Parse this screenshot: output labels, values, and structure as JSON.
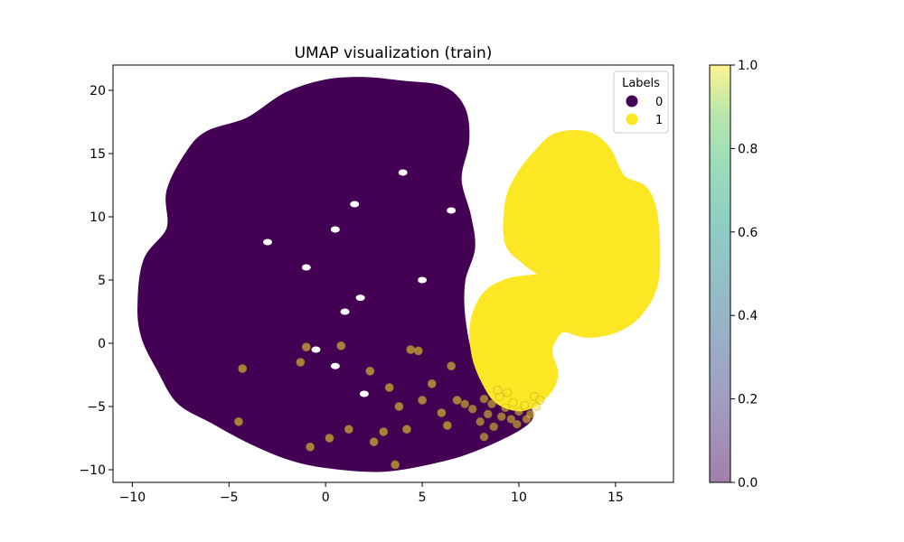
{
  "chart_data": {
    "type": "scatter",
    "title": "UMAP visualization (train)",
    "xlabel": "",
    "ylabel": "",
    "xlim": [
      -11,
      18
    ],
    "ylim": [
      -11,
      22
    ],
    "xticks": [
      -10,
      -5,
      0,
      5,
      10,
      15
    ],
    "yticks": [
      -10,
      -5,
      0,
      5,
      10,
      15,
      20
    ],
    "grid": false,
    "legend": {
      "title": "Labels",
      "placement": "top-right",
      "entries": [
        {
          "label": "0",
          "color": "#440154"
        },
        {
          "label": "1",
          "color": "#fde725"
        }
      ]
    },
    "colorbar": {
      "ticks": [
        0.0,
        0.2,
        0.4,
        0.6,
        0.8,
        1.0
      ],
      "tick_labels": [
        "0.0",
        "0.2",
        "0.4",
        "0.6",
        "0.8",
        "1.0"
      ],
      "colormap": "viridis",
      "alpha": 0.5
    },
    "series": [
      {
        "name": "0",
        "color": "#440154",
        "region_outline": [
          [
            -9.5,
            3
          ],
          [
            -9.2,
            6.5
          ],
          [
            -8,
            9
          ],
          [
            -8,
            12
          ],
          [
            -7,
            15
          ],
          [
            -6,
            16.5
          ],
          [
            -4,
            17.5
          ],
          [
            -2,
            19.5
          ],
          [
            0,
            20.5
          ],
          [
            2,
            20.7
          ],
          [
            4,
            20.4
          ],
          [
            6,
            20
          ],
          [
            7,
            18.5
          ],
          [
            7.2,
            16
          ],
          [
            6.8,
            13
          ],
          [
            7.3,
            10
          ],
          [
            7.5,
            7.5
          ],
          [
            7,
            5
          ],
          [
            7,
            2
          ],
          [
            7.5,
            -1.5
          ],
          [
            8.5,
            -3.5
          ],
          [
            9.5,
            -4.5
          ],
          [
            10.5,
            -5.5
          ],
          [
            10,
            -6.5
          ],
          [
            8,
            -8
          ],
          [
            6,
            -9
          ],
          [
            3,
            -9.8
          ],
          [
            0,
            -9.5
          ],
          [
            -2,
            -8.8
          ],
          [
            -4,
            -7.5
          ],
          [
            -5.8,
            -6
          ],
          [
            -7.5,
            -4.5
          ],
          [
            -8.5,
            -2
          ],
          [
            -9.3,
            0.5
          ]
        ],
        "holes": [
          [
            1.5,
            11
          ],
          [
            0.5,
            9
          ],
          [
            -0.5,
            -0.5
          ],
          [
            2,
            -4
          ],
          [
            1,
            2.5
          ],
          [
            6.5,
            10.5
          ],
          [
            -3,
            8
          ],
          [
            4,
            13.5
          ],
          [
            0.5,
            -1.8
          ],
          [
            1.8,
            3.6
          ],
          [
            -1,
            6
          ],
          [
            5,
            5
          ]
        ],
        "outliers": [
          [
            -4.5,
            -6.2
          ],
          [
            -4.3,
            -2
          ],
          [
            -1.3,
            -1.5
          ],
          [
            3.3,
            -3.5
          ],
          [
            4.4,
            -0.5
          ],
          [
            4.8,
            -0.6
          ],
          [
            6.5,
            -1.8
          ],
          [
            2.5,
            -7.8
          ],
          [
            3.0,
            -7.0
          ],
          [
            4.2,
            -6.8
          ],
          [
            3.6,
            -9.6
          ],
          [
            5.0,
            -4.5
          ],
          [
            6.0,
            -5.5
          ],
          [
            6.3,
            -6.5
          ],
          [
            1.2,
            -6.8
          ],
          [
            0.2,
            -7.5
          ],
          [
            -0.8,
            -8.2
          ],
          [
            5.5,
            -3.2
          ],
          [
            6.8,
            -4.5
          ],
          [
            3.8,
            -5.0
          ],
          [
            -1.0,
            -0.3
          ],
          [
            0.8,
            -0.2
          ],
          [
            2.3,
            -2.2
          ]
        ]
      },
      {
        "name": "1",
        "color": "#fde725",
        "region_outline": [
          [
            12,
            16.3
          ],
          [
            13.5,
            16.4
          ],
          [
            14.5,
            15.3
          ],
          [
            15.3,
            13
          ],
          [
            16.5,
            12
          ],
          [
            17,
            9.5
          ],
          [
            17,
            5
          ],
          [
            16.2,
            2.5
          ],
          [
            15,
            1.2
          ],
          [
            13.5,
            0.8
          ],
          [
            12.2,
            1.2
          ],
          [
            11.5,
            -0.5
          ],
          [
            11.8,
            -2.5
          ],
          [
            11.3,
            -4
          ],
          [
            10.2,
            -5
          ],
          [
            9,
            -4.5
          ],
          [
            8.3,
            -3
          ],
          [
            7.8,
            -1
          ],
          [
            7.7,
            1.5
          ],
          [
            8.3,
            3.7
          ],
          [
            9.5,
            4.8
          ],
          [
            11.3,
            5.3
          ],
          [
            10.4,
            6.5
          ],
          [
            9.5,
            8
          ],
          [
            9.5,
            11
          ],
          [
            10,
            13
          ],
          [
            11,
            15
          ]
        ],
        "holes": [],
        "outliers": []
      }
    ]
  }
}
